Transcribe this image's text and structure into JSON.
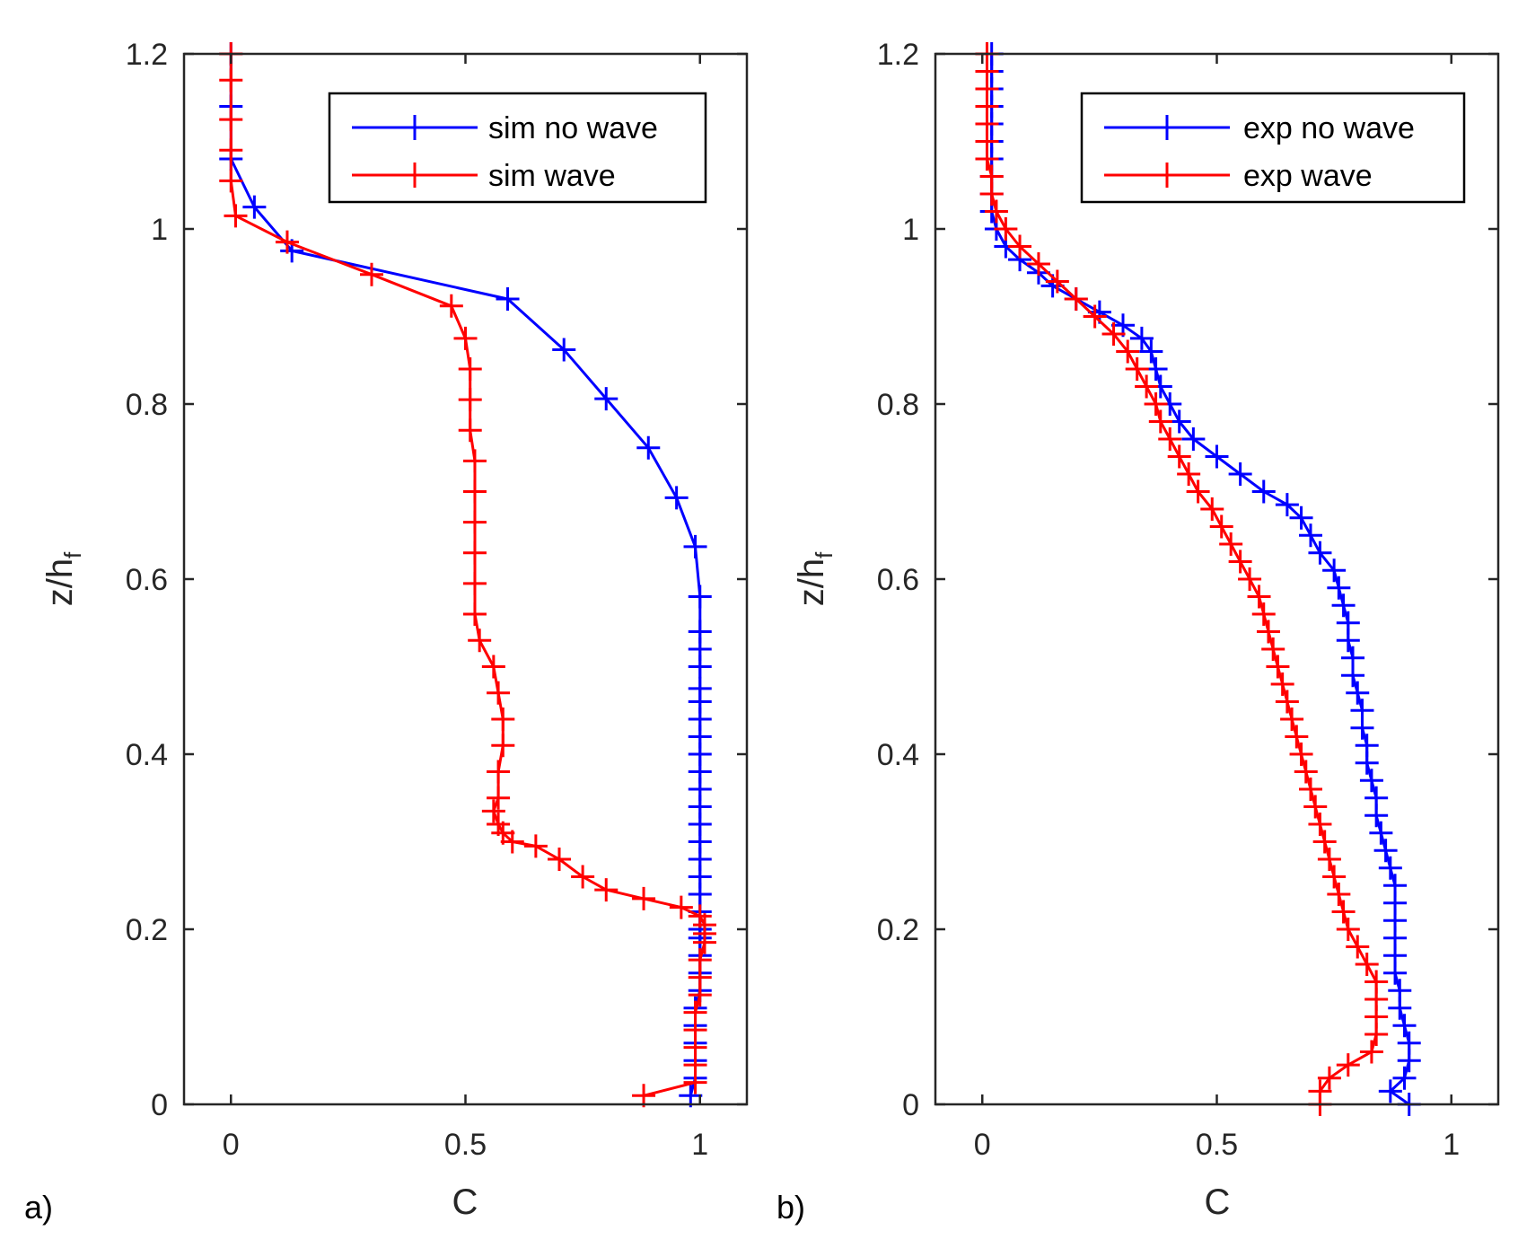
{
  "colors": {
    "blue": "#0000ff",
    "red": "#ff0000",
    "axis": "#262626"
  },
  "chart_data": [
    {
      "panel": "a)",
      "type": "line",
      "xlabel": "C",
      "ylabel": "z/h",
      "ylabel_sub": "f",
      "xlim": [
        -0.1,
        1.1
      ],
      "ylim": [
        0,
        1.2
      ],
      "xticks": [
        "0",
        "0.5",
        "1"
      ],
      "yticks": [
        "0",
        "0.2",
        "0.4",
        "0.6",
        "0.8",
        "1",
        "1.2"
      ],
      "legend_position": "top-right",
      "series": [
        {
          "name": "sim no wave",
          "color": "blue",
          "points": [
            [
              0.0,
              1.2
            ],
            [
              0.0,
              1.14
            ],
            [
              0.0,
              1.08
            ],
            [
              0.05,
              1.025
            ],
            [
              0.13,
              0.975
            ],
            [
              0.59,
              0.92
            ],
            [
              0.71,
              0.862
            ],
            [
              0.8,
              0.806
            ],
            [
              0.89,
              0.75
            ],
            [
              0.95,
              0.693
            ],
            [
              0.99,
              0.637
            ],
            [
              1.0,
              0.58
            ],
            [
              1.0,
              0.54
            ],
            [
              1.0,
              0.52
            ],
            [
              1.0,
              0.5
            ],
            [
              1.0,
              0.475
            ],
            [
              1.0,
              0.46
            ],
            [
              1.0,
              0.44
            ],
            [
              1.0,
              0.42
            ],
            [
              1.0,
              0.4
            ],
            [
              1.0,
              0.38
            ],
            [
              1.0,
              0.36
            ],
            [
              1.0,
              0.34
            ],
            [
              1.0,
              0.32
            ],
            [
              1.0,
              0.3
            ],
            [
              1.0,
              0.28
            ],
            [
              1.0,
              0.26
            ],
            [
              1.0,
              0.24
            ],
            [
              1.0,
              0.22
            ],
            [
              1.0,
              0.2
            ],
            [
              1.0,
              0.19
            ],
            [
              1.0,
              0.17
            ],
            [
              1.0,
              0.15
            ],
            [
              1.0,
              0.13
            ],
            [
              0.99,
              0.11
            ],
            [
              0.99,
              0.09
            ],
            [
              0.99,
              0.07
            ],
            [
              0.99,
              0.05
            ],
            [
              0.99,
              0.03
            ],
            [
              0.98,
              0.01
            ]
          ]
        },
        {
          "name": "sim wave",
          "color": "red",
          "points": [
            [
              0.0,
              1.2
            ],
            [
              0.0,
              1.17
            ],
            [
              0.0,
              1.125
            ],
            [
              0.0,
              1.09
            ],
            [
              0.0,
              1.055
            ],
            [
              0.01,
              1.015
            ],
            [
              0.12,
              0.985
            ],
            [
              0.3,
              0.948
            ],
            [
              0.47,
              0.912
            ],
            [
              0.5,
              0.875
            ],
            [
              0.51,
              0.84
            ],
            [
              0.51,
              0.805
            ],
            [
              0.51,
              0.77
            ],
            [
              0.52,
              0.735
            ],
            [
              0.52,
              0.7
            ],
            [
              0.52,
              0.665
            ],
            [
              0.52,
              0.63
            ],
            [
              0.52,
              0.595
            ],
            [
              0.52,
              0.56
            ],
            [
              0.53,
              0.53
            ],
            [
              0.56,
              0.5
            ],
            [
              0.57,
              0.47
            ],
            [
              0.58,
              0.44
            ],
            [
              0.58,
              0.41
            ],
            [
              0.57,
              0.38
            ],
            [
              0.57,
              0.35
            ],
            [
              0.56,
              0.335
            ],
            [
              0.57,
              0.32
            ],
            [
              0.58,
              0.31
            ],
            [
              0.6,
              0.3
            ],
            [
              0.65,
              0.295
            ],
            [
              0.7,
              0.28
            ],
            [
              0.75,
              0.26
            ],
            [
              0.8,
              0.245
            ],
            [
              0.88,
              0.235
            ],
            [
              0.96,
              0.225
            ],
            [
              1.0,
              0.215
            ],
            [
              1.01,
              0.205
            ],
            [
              1.01,
              0.195
            ],
            [
              1.01,
              0.185
            ],
            [
              1.0,
              0.165
            ],
            [
              1.0,
              0.145
            ],
            [
              1.0,
              0.125
            ],
            [
              0.99,
              0.105
            ],
            [
              0.99,
              0.085
            ],
            [
              0.99,
              0.065
            ],
            [
              0.99,
              0.045
            ],
            [
              0.99,
              0.025
            ],
            [
              0.88,
              0.01
            ]
          ]
        }
      ]
    },
    {
      "panel": "b)",
      "type": "line",
      "xlabel": "C",
      "ylabel": "z/h",
      "ylabel_sub": "f",
      "xlim": [
        -0.1,
        1.1
      ],
      "ylim": [
        0,
        1.2
      ],
      "xticks": [
        "0",
        "0.5",
        "1"
      ],
      "yticks": [
        "0",
        "0.2",
        "0.4",
        "0.6",
        "0.8",
        "1",
        "1.2"
      ],
      "legend_position": "top-right",
      "series": [
        {
          "name": "exp no wave",
          "color": "blue",
          "points": [
            [
              0.02,
              1.2
            ],
            [
              0.02,
              1.18
            ],
            [
              0.02,
              1.16
            ],
            [
              0.02,
              1.14
            ],
            [
              0.02,
              1.12
            ],
            [
              0.02,
              1.1
            ],
            [
              0.02,
              1.08
            ],
            [
              0.02,
              1.06
            ],
            [
              0.02,
              1.04
            ],
            [
              0.02,
              1.02
            ],
            [
              0.03,
              1.0
            ],
            [
              0.05,
              0.98
            ],
            [
              0.08,
              0.965
            ],
            [
              0.12,
              0.95
            ],
            [
              0.15,
              0.935
            ],
            [
              0.2,
              0.92
            ],
            [
              0.25,
              0.905
            ],
            [
              0.3,
              0.89
            ],
            [
              0.34,
              0.875
            ],
            [
              0.36,
              0.86
            ],
            [
              0.37,
              0.84
            ],
            [
              0.38,
              0.82
            ],
            [
              0.4,
              0.8
            ],
            [
              0.42,
              0.78
            ],
            [
              0.45,
              0.76
            ],
            [
              0.5,
              0.74
            ],
            [
              0.55,
              0.72
            ],
            [
              0.6,
              0.7
            ],
            [
              0.65,
              0.685
            ],
            [
              0.68,
              0.67
            ],
            [
              0.7,
              0.65
            ],
            [
              0.72,
              0.63
            ],
            [
              0.75,
              0.61
            ],
            [
              0.76,
              0.59
            ],
            [
              0.77,
              0.57
            ],
            [
              0.78,
              0.55
            ],
            [
              0.78,
              0.53
            ],
            [
              0.79,
              0.51
            ],
            [
              0.79,
              0.49
            ],
            [
              0.8,
              0.47
            ],
            [
              0.81,
              0.45
            ],
            [
              0.81,
              0.43
            ],
            [
              0.82,
              0.41
            ],
            [
              0.82,
              0.39
            ],
            [
              0.83,
              0.37
            ],
            [
              0.84,
              0.35
            ],
            [
              0.84,
              0.33
            ],
            [
              0.85,
              0.31
            ],
            [
              0.86,
              0.29
            ],
            [
              0.87,
              0.27
            ],
            [
              0.88,
              0.25
            ],
            [
              0.88,
              0.23
            ],
            [
              0.88,
              0.21
            ],
            [
              0.88,
              0.19
            ],
            [
              0.88,
              0.17
            ],
            [
              0.88,
              0.15
            ],
            [
              0.89,
              0.13
            ],
            [
              0.89,
              0.11
            ],
            [
              0.9,
              0.09
            ],
            [
              0.91,
              0.07
            ],
            [
              0.91,
              0.05
            ],
            [
              0.9,
              0.03
            ],
            [
              0.87,
              0.015
            ],
            [
              0.91,
              0.0
            ]
          ]
        },
        {
          "name": "exp wave",
          "color": "red",
          "points": [
            [
              0.01,
              1.2
            ],
            [
              0.01,
              1.18
            ],
            [
              0.01,
              1.16
            ],
            [
              0.01,
              1.14
            ],
            [
              0.01,
              1.12
            ],
            [
              0.01,
              1.1
            ],
            [
              0.01,
              1.08
            ],
            [
              0.02,
              1.06
            ],
            [
              0.02,
              1.04
            ],
            [
              0.03,
              1.02
            ],
            [
              0.05,
              1.0
            ],
            [
              0.08,
              0.98
            ],
            [
              0.12,
              0.96
            ],
            [
              0.16,
              0.94
            ],
            [
              0.2,
              0.92
            ],
            [
              0.24,
              0.9
            ],
            [
              0.28,
              0.88
            ],
            [
              0.31,
              0.86
            ],
            [
              0.33,
              0.84
            ],
            [
              0.35,
              0.82
            ],
            [
              0.37,
              0.8
            ],
            [
              0.38,
              0.78
            ],
            [
              0.4,
              0.76
            ],
            [
              0.42,
              0.74
            ],
            [
              0.44,
              0.72
            ],
            [
              0.46,
              0.7
            ],
            [
              0.49,
              0.68
            ],
            [
              0.51,
              0.66
            ],
            [
              0.53,
              0.64
            ],
            [
              0.55,
              0.62
            ],
            [
              0.57,
              0.6
            ],
            [
              0.59,
              0.58
            ],
            [
              0.6,
              0.56
            ],
            [
              0.61,
              0.54
            ],
            [
              0.62,
              0.52
            ],
            [
              0.63,
              0.5
            ],
            [
              0.64,
              0.48
            ],
            [
              0.65,
              0.46
            ],
            [
              0.66,
              0.44
            ],
            [
              0.67,
              0.42
            ],
            [
              0.68,
              0.4
            ],
            [
              0.69,
              0.38
            ],
            [
              0.7,
              0.36
            ],
            [
              0.71,
              0.34
            ],
            [
              0.72,
              0.32
            ],
            [
              0.73,
              0.3
            ],
            [
              0.74,
              0.28
            ],
            [
              0.75,
              0.26
            ],
            [
              0.76,
              0.24
            ],
            [
              0.77,
              0.22
            ],
            [
              0.78,
              0.2
            ],
            [
              0.8,
              0.18
            ],
            [
              0.82,
              0.16
            ],
            [
              0.84,
              0.14
            ],
            [
              0.84,
              0.12
            ],
            [
              0.84,
              0.1
            ],
            [
              0.84,
              0.08
            ],
            [
              0.83,
              0.06
            ],
            [
              0.78,
              0.045
            ],
            [
              0.74,
              0.03
            ],
            [
              0.72,
              0.015
            ],
            [
              0.72,
              0.0
            ]
          ]
        }
      ]
    }
  ]
}
